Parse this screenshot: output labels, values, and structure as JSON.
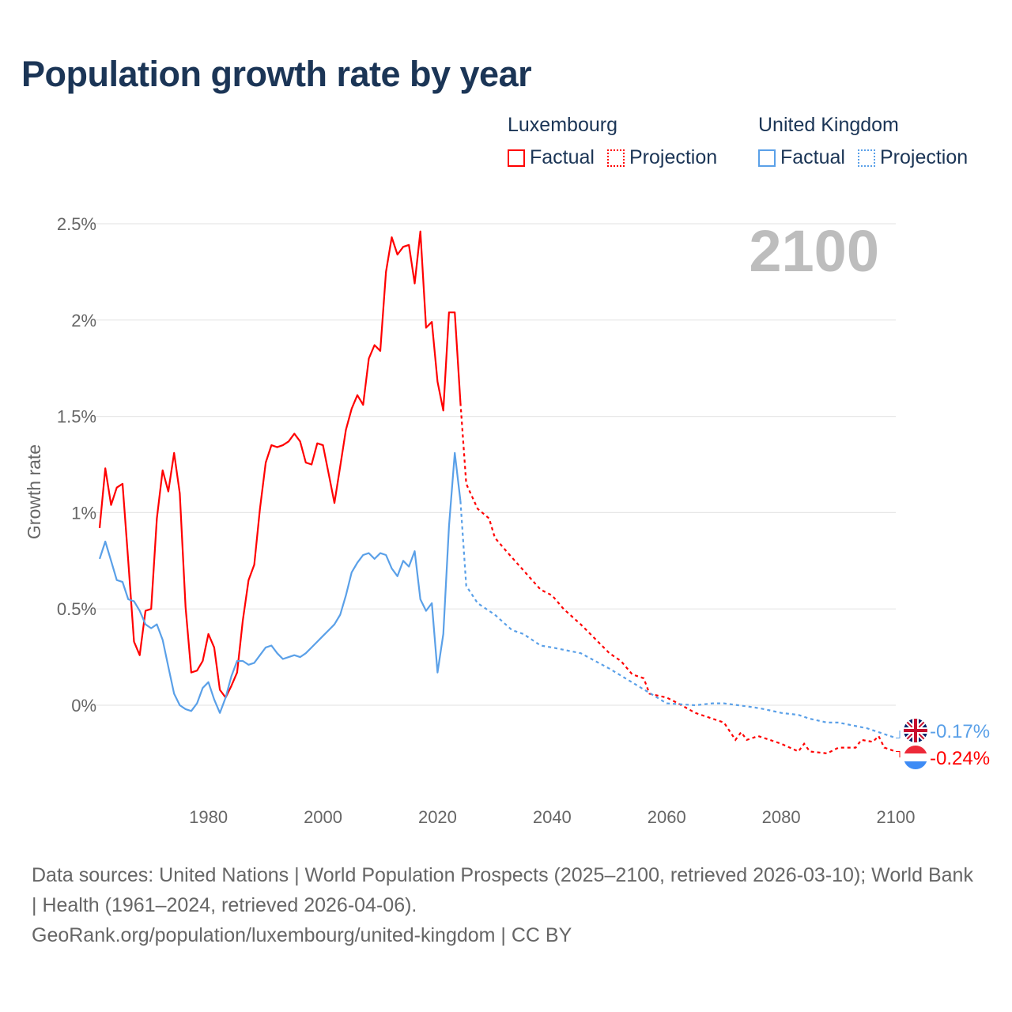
{
  "title": "Population growth rate by year",
  "legend": {
    "groups": [
      {
        "name": "Luxembourg",
        "factual": "Factual",
        "projection": "Projection",
        "color": "#ff0000"
      },
      {
        "name": "United Kingdom",
        "factual": "Factual",
        "projection": "Projection",
        "color": "#5aa0e8"
      }
    ]
  },
  "year_watermark": "2100",
  "footer": {
    "sources": "Data sources: United Nations | World Population Prospects (2025–2100, retrieved 2026-03-10); World Bank | Health (1961–2024, retrieved 2026-04-06).",
    "credit": "GeoRank.org/population/luxembourg/united-kingdom | CC BY"
  },
  "chart_data": {
    "type": "line",
    "title": "Population growth rate by year",
    "xlabel": "",
    "ylabel": "Growth rate",
    "xlim": [
      1961,
      2100
    ],
    "ylim": [
      -0.45,
      2.6
    ],
    "x_ticks": [
      1980,
      2000,
      2020,
      2040,
      2060,
      2080,
      2100
    ],
    "x_tick_labels": [
      "1980",
      "2000",
      "2020",
      "2040",
      "2060",
      "2080",
      "2100"
    ],
    "y_ticks": [
      0,
      0.5,
      1,
      1.5,
      2,
      2.5
    ],
    "y_tick_labels": [
      "0%",
      "0.5%",
      "1%",
      "1.5%",
      "2%",
      "2.5%"
    ],
    "grid": true,
    "legend_position": "top-right",
    "series": [
      {
        "name": "Luxembourg",
        "color": "#ff0000",
        "end_label": "-0.24%",
        "flag": "luxembourg-flag",
        "factual": [
          [
            1961,
            0.92
          ],
          [
            1962,
            1.23
          ],
          [
            1963,
            1.04
          ],
          [
            1964,
            1.13
          ],
          [
            1965,
            1.15
          ],
          [
            1966,
            0.75
          ],
          [
            1967,
            0.33
          ],
          [
            1968,
            0.26
          ],
          [
            1969,
            0.49
          ],
          [
            1970,
            0.5
          ],
          [
            1971,
            0.97
          ],
          [
            1972,
            1.22
          ],
          [
            1973,
            1.11
          ],
          [
            1974,
            1.31
          ],
          [
            1975,
            1.1
          ],
          [
            1976,
            0.51
          ],
          [
            1977,
            0.17
          ],
          [
            1978,
            0.18
          ],
          [
            1979,
            0.23
          ],
          [
            1980,
            0.37
          ],
          [
            1981,
            0.3
          ],
          [
            1982,
            0.08
          ],
          [
            1983,
            0.04
          ],
          [
            1984,
            0.1
          ],
          [
            1985,
            0.17
          ],
          [
            1986,
            0.44
          ],
          [
            1987,
            0.65
          ],
          [
            1988,
            0.73
          ],
          [
            1989,
            1.02
          ],
          [
            1990,
            1.26
          ],
          [
            1991,
            1.35
          ],
          [
            1992,
            1.34
          ],
          [
            1993,
            1.35
          ],
          [
            1994,
            1.37
          ],
          [
            1995,
            1.41
          ],
          [
            1996,
            1.37
          ],
          [
            1997,
            1.26
          ],
          [
            1998,
            1.25
          ],
          [
            1999,
            1.36
          ],
          [
            2000,
            1.35
          ],
          [
            2001,
            1.2
          ],
          [
            2002,
            1.05
          ],
          [
            2003,
            1.24
          ],
          [
            2004,
            1.43
          ],
          [
            2005,
            1.54
          ],
          [
            2006,
            1.61
          ],
          [
            2007,
            1.56
          ],
          [
            2008,
            1.8
          ],
          [
            2009,
            1.87
          ],
          [
            2010,
            1.84
          ],
          [
            2011,
            2.25
          ],
          [
            2012,
            2.43
          ],
          [
            2013,
            2.34
          ],
          [
            2014,
            2.38
          ],
          [
            2015,
            2.39
          ],
          [
            2016,
            2.19
          ],
          [
            2017,
            2.46
          ],
          [
            2018,
            1.96
          ],
          [
            2019,
            1.99
          ],
          [
            2020,
            1.68
          ],
          [
            2021,
            1.53
          ],
          [
            2022,
            2.04
          ],
          [
            2023,
            2.04
          ],
          [
            2024,
            1.57
          ]
        ],
        "projection": [
          [
            2024,
            1.57
          ],
          [
            2025,
            1.15
          ],
          [
            2027,
            1.02
          ],
          [
            2029,
            0.97
          ],
          [
            2030,
            0.87
          ],
          [
            2032,
            0.8
          ],
          [
            2035,
            0.7
          ],
          [
            2038,
            0.6
          ],
          [
            2040,
            0.57
          ],
          [
            2042,
            0.5
          ],
          [
            2045,
            0.42
          ],
          [
            2048,
            0.33
          ],
          [
            2050,
            0.27
          ],
          [
            2052,
            0.23
          ],
          [
            2054,
            0.16
          ],
          [
            2056,
            0.14
          ],
          [
            2057,
            0.06
          ],
          [
            2060,
            0.04
          ],
          [
            2062,
            0.01
          ],
          [
            2065,
            -0.04
          ],
          [
            2070,
            -0.09
          ],
          [
            2072,
            -0.18
          ],
          [
            2073,
            -0.14
          ],
          [
            2074,
            -0.18
          ],
          [
            2076,
            -0.16
          ],
          [
            2080,
            -0.2
          ],
          [
            2083,
            -0.24
          ],
          [
            2084,
            -0.2
          ],
          [
            2085,
            -0.24
          ],
          [
            2088,
            -0.25
          ],
          [
            2090,
            -0.22
          ],
          [
            2093,
            -0.22
          ],
          [
            2094,
            -0.18
          ],
          [
            2096,
            -0.19
          ],
          [
            2097,
            -0.16
          ],
          [
            2098,
            -0.22
          ],
          [
            2100,
            -0.24
          ]
        ]
      },
      {
        "name": "United Kingdom",
        "color": "#5aa0e8",
        "end_label": "-0.17%",
        "flag": "united-kingdom-flag",
        "factual": [
          [
            1961,
            0.76
          ],
          [
            1962,
            0.85
          ],
          [
            1963,
            0.75
          ],
          [
            1964,
            0.65
          ],
          [
            1965,
            0.64
          ],
          [
            1966,
            0.55
          ],
          [
            1967,
            0.54
          ],
          [
            1968,
            0.49
          ],
          [
            1969,
            0.42
          ],
          [
            1970,
            0.4
          ],
          [
            1971,
            0.42
          ],
          [
            1972,
            0.34
          ],
          [
            1973,
            0.2
          ],
          [
            1974,
            0.06
          ],
          [
            1975,
            0.0
          ],
          [
            1976,
            -0.02
          ],
          [
            1977,
            -0.03
          ],
          [
            1978,
            0.01
          ],
          [
            1979,
            0.09
          ],
          [
            1980,
            0.12
          ],
          [
            1981,
            0.03
          ],
          [
            1982,
            -0.04
          ],
          [
            1983,
            0.04
          ],
          [
            1984,
            0.15
          ],
          [
            1985,
            0.23
          ],
          [
            1986,
            0.23
          ],
          [
            1987,
            0.21
          ],
          [
            1988,
            0.22
          ],
          [
            1989,
            0.26
          ],
          [
            1990,
            0.3
          ],
          [
            1991,
            0.31
          ],
          [
            1992,
            0.27
          ],
          [
            1993,
            0.24
          ],
          [
            1994,
            0.25
          ],
          [
            1995,
            0.26
          ],
          [
            1996,
            0.25
          ],
          [
            1997,
            0.27
          ],
          [
            1998,
            0.3
          ],
          [
            1999,
            0.33
          ],
          [
            2000,
            0.36
          ],
          [
            2001,
            0.39
          ],
          [
            2002,
            0.42
          ],
          [
            2003,
            0.47
          ],
          [
            2004,
            0.57
          ],
          [
            2005,
            0.69
          ],
          [
            2006,
            0.74
          ],
          [
            2007,
            0.78
          ],
          [
            2008,
            0.79
          ],
          [
            2009,
            0.76
          ],
          [
            2010,
            0.79
          ],
          [
            2011,
            0.78
          ],
          [
            2012,
            0.71
          ],
          [
            2013,
            0.67
          ],
          [
            2014,
            0.75
          ],
          [
            2015,
            0.72
          ],
          [
            2016,
            0.8
          ],
          [
            2017,
            0.55
          ],
          [
            2018,
            0.49
          ],
          [
            2019,
            0.53
          ],
          [
            2020,
            0.17
          ],
          [
            2021,
            0.37
          ],
          [
            2022,
            0.93
          ],
          [
            2023,
            1.31
          ],
          [
            2024,
            1.06
          ]
        ],
        "projection": [
          [
            2024,
            1.06
          ],
          [
            2025,
            0.62
          ],
          [
            2027,
            0.53
          ],
          [
            2030,
            0.47
          ],
          [
            2033,
            0.39
          ],
          [
            2035,
            0.37
          ],
          [
            2038,
            0.31
          ],
          [
            2040,
            0.3
          ],
          [
            2045,
            0.27
          ],
          [
            2050,
            0.19
          ],
          [
            2055,
            0.1
          ],
          [
            2060,
            0.01
          ],
          [
            2065,
            0.0
          ],
          [
            2068,
            0.01
          ],
          [
            2070,
            0.01
          ],
          [
            2075,
            -0.01
          ],
          [
            2077,
            -0.02
          ],
          [
            2080,
            -0.04
          ],
          [
            2083,
            -0.05
          ],
          [
            2085,
            -0.07
          ],
          [
            2088,
            -0.09
          ],
          [
            2090,
            -0.09
          ],
          [
            2095,
            -0.12
          ],
          [
            2098,
            -0.15
          ],
          [
            2100,
            -0.17
          ]
        ]
      }
    ]
  }
}
